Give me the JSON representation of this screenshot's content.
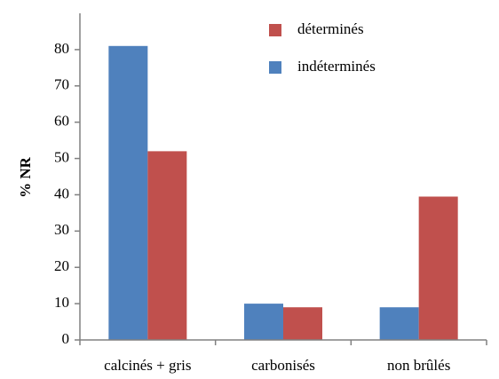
{
  "chart_data": {
    "type": "bar",
    "ylabel": "% NR",
    "categories": [
      "calcinés + gris",
      "carbonisés",
      "non brûlés"
    ],
    "series": [
      {
        "name": "indéterminés",
        "color": "#4f81bd",
        "values": [
          81,
          10,
          9
        ]
      },
      {
        "name": "déterminés",
        "color": "#c0504d",
        "values": [
          52,
          9,
          39.5
        ]
      }
    ],
    "ylim": [
      0,
      90
    ],
    "yticks": [
      0,
      10,
      20,
      30,
      40,
      50,
      60,
      70,
      80
    ]
  }
}
